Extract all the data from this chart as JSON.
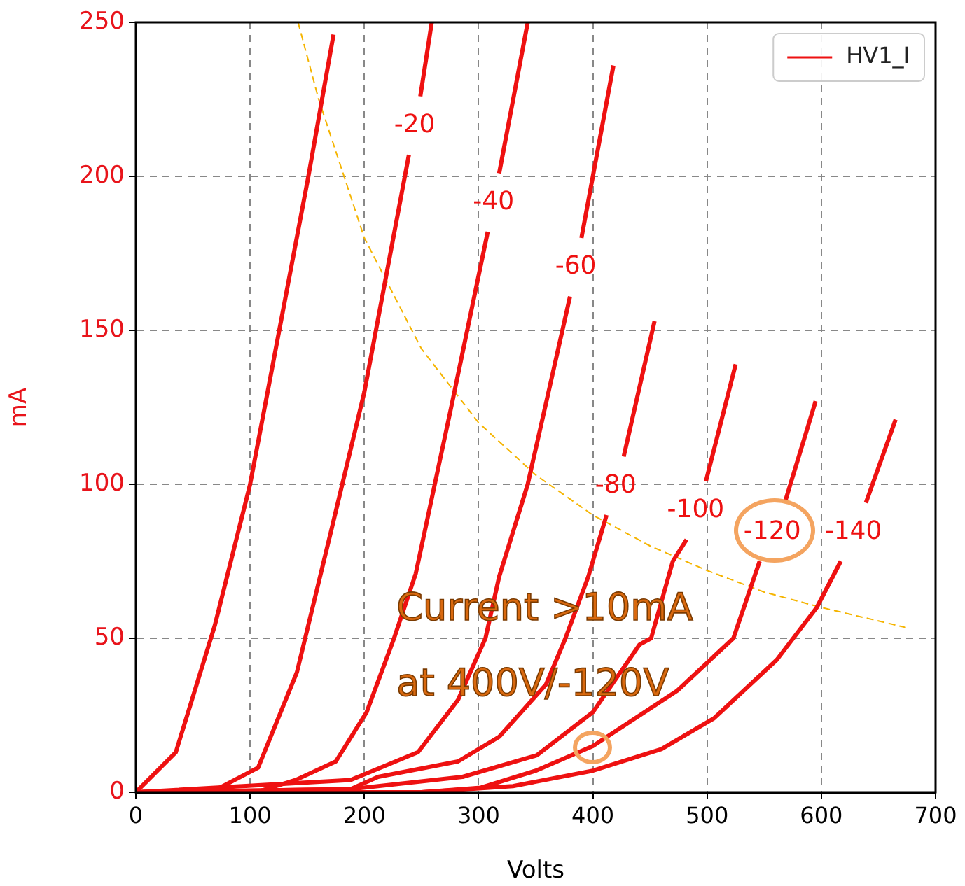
{
  "chart_data": {
    "type": "line",
    "xlabel": "Volts",
    "ylabel": "mA",
    "xlim": [
      0,
      700
    ],
    "xticks": [
      0,
      100,
      200,
      300,
      400,
      500,
      600,
      700
    ],
    "ylim": [
      0,
      250
    ],
    "yticks": [
      0,
      50,
      100,
      150,
      200,
      250
    ],
    "grid": true,
    "legend": "top right",
    "series": [
      {
        "name": "HV1_I",
        "color": "#ee1111",
        "x": [
          0,
          35,
          69,
          100,
          151,
          173
        ],
        "values": [
          0,
          13,
          54,
          100,
          200,
          246
        ]
      },
      {
        "name": "-20",
        "color": "#ee1111",
        "x": [
          0,
          71,
          107,
          141,
          171,
          200,
          239,
          244,
          249,
          259
        ],
        "values": [
          0,
          1,
          8,
          39,
          85,
          130,
          207,
          null,
          226,
          250
        ]
      },
      {
        "name": "-40",
        "color": "#ee1111",
        "x": [
          0,
          105,
          140,
          175,
          202,
          226,
          245,
          276,
          308,
          313,
          318,
          343
        ],
        "values": [
          0,
          0,
          4,
          10,
          26,
          50,
          71,
          125,
          182,
          null,
          201,
          250
        ]
      },
      {
        "name": "-60",
        "color": "#ee1111",
        "x": [
          0,
          188,
          247,
          282,
          306,
          318,
          343,
          380,
          385,
          390,
          418
        ],
        "values": [
          0,
          4,
          13,
          30,
          50,
          70,
          100,
          161,
          null,
          180,
          236
        ]
      },
      {
        "name": "-80",
        "color": "#ee1111",
        "x": [
          0,
          188,
          212,
          282,
          318,
          359,
          376,
          396,
          412,
          420,
          427,
          454
        ],
        "values": [
          0,
          1,
          5,
          10,
          18,
          35,
          50,
          70,
          90,
          null,
          109,
          153
        ]
      },
      {
        "name": "-100",
        "color": "#ee1111",
        "x": [
          0,
          188,
          286,
          351,
          400,
          441,
          451,
          470,
          482,
          490,
          499,
          525
        ],
        "values": [
          0,
          1,
          5,
          12,
          26,
          48,
          50,
          75,
          82,
          null,
          101,
          139
        ]
      },
      {
        "name": "-120",
        "color": "#ee1111",
        "x": [
          0,
          250,
          302,
          350,
          400,
          474,
          523,
          546,
          557,
          568,
          595
        ],
        "values": [
          0,
          0,
          1.5,
          7,
          15,
          33,
          50,
          75,
          null,
          94,
          127
        ]
      },
      {
        "name": "-140",
        "color": "#ee1111",
        "x": [
          0,
          250,
          330,
          400,
          460,
          506,
          561,
          596,
          617,
          628,
          639,
          665
        ],
        "values": [
          0,
          0,
          2,
          7,
          14,
          24,
          43,
          60,
          75,
          null,
          94,
          121
        ]
      },
      {
        "color": "#f5b400",
        "line_style": "dashed",
        "x": [
          142,
          160,
          200,
          250,
          300,
          350,
          400,
          450,
          500,
          550,
          600,
          674
        ],
        "values": [
          250,
          225,
          180,
          144,
          120,
          103,
          90,
          80,
          72,
          65,
          60,
          53.5
        ]
      }
    ],
    "annotations": [
      "Current >10mA",
      "at 400V/-120V"
    ]
  }
}
